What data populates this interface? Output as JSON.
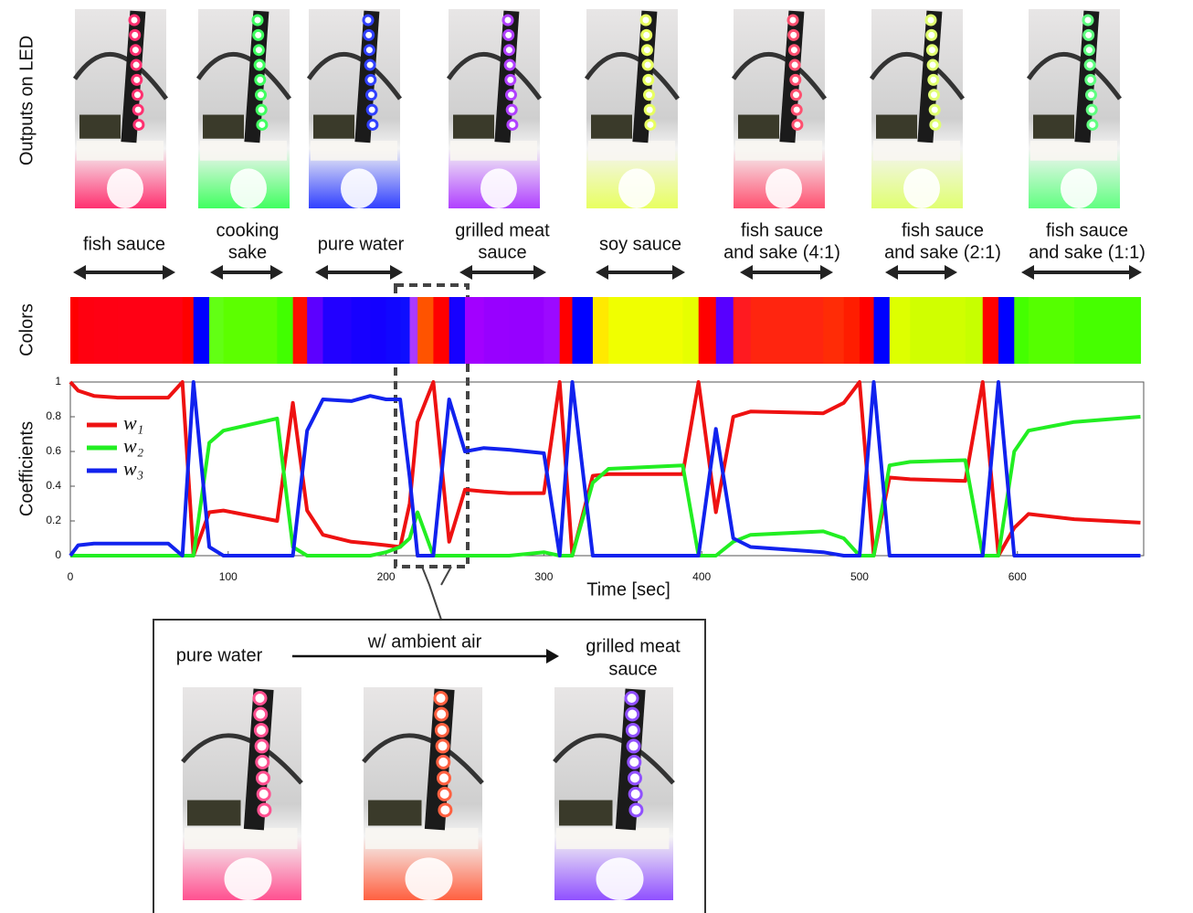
{
  "led_label": "Outputs on LED",
  "colors_label": "Colors",
  "samples": [
    {
      "lines": [
        "fish sauce"
      ],
      "tint": "#ff3070"
    },
    {
      "lines": [
        "cooking",
        "sake"
      ],
      "tint": "#40ff60"
    },
    {
      "lines": [
        "pure water"
      ],
      "tint": "#3040ff"
    },
    {
      "lines": [
        "grilled meat",
        "sauce"
      ],
      "tint": "#b040ff"
    },
    {
      "lines": [
        "soy sauce"
      ],
      "tint": "#e8ff60"
    },
    {
      "lines": [
        "fish sauce",
        "and sake (4:1)"
      ],
      "tint": "#ff5070"
    },
    {
      "lines": [
        "fish sauce",
        "and sake (2:1)"
      ],
      "tint": "#e0ff70"
    },
    {
      "lines": [
        "fish sauce",
        "and sake (1:1)"
      ],
      "tint": "#60ff80"
    }
  ],
  "chart_data": {
    "type": "line",
    "ylabel": "Coefficients",
    "xlabel": "Time [sec]",
    "x": [
      0,
      5,
      15,
      30,
      62,
      71,
      78,
      88,
      97,
      131,
      141,
      150,
      160,
      178,
      190,
      200,
      209,
      215,
      220,
      230,
      240,
      250,
      262,
      278,
      300,
      310,
      318,
      331,
      341,
      388,
      398,
      409,
      420,
      431,
      477,
      490,
      500,
      509,
      519,
      532,
      567,
      578,
      588,
      598,
      607,
      636,
      678
    ],
    "series": [
      {
        "name": "w₁",
        "color": "#ee1111",
        "values": [
          1.0,
          0.95,
          0.92,
          0.91,
          0.91,
          1.0,
          0,
          0.25,
          0.26,
          0.2,
          0.88,
          0.26,
          0.12,
          0.08,
          0.07,
          0.06,
          0.05,
          0.3,
          0.77,
          1.0,
          0.08,
          0.38,
          0.37,
          0.36,
          0.36,
          1.0,
          0,
          0.46,
          0.47,
          0.47,
          1.0,
          0.25,
          0.8,
          0.83,
          0.82,
          0.88,
          1.0,
          0,
          0.45,
          0.44,
          0.43,
          1.0,
          0,
          0.16,
          0.24,
          0.21,
          0.19
        ]
      },
      {
        "name": "w₂",
        "color": "#22ee22",
        "values": [
          0,
          0,
          0,
          0,
          0,
          0,
          0,
          0.65,
          0.72,
          0.79,
          0.05,
          0,
          0,
          0,
          0,
          0.02,
          0.05,
          0.1,
          0.25,
          0,
          0,
          0,
          0,
          0,
          0.02,
          0,
          0,
          0.42,
          0.5,
          0.52,
          0,
          0,
          0.08,
          0.12,
          0.14,
          0.1,
          0,
          0,
          0.52,
          0.54,
          0.55,
          0,
          0,
          0.6,
          0.72,
          0.77,
          0.8
        ]
      },
      {
        "name": "w₃",
        "color": "#1122ee",
        "values": [
          0,
          0.06,
          0.07,
          0.07,
          0.07,
          0,
          1.0,
          0.05,
          0,
          0,
          0,
          0.72,
          0.9,
          0.89,
          0.92,
          0.9,
          0.9,
          0.45,
          0,
          0,
          0.9,
          0.6,
          0.62,
          0.61,
          0.59,
          0,
          1.0,
          0,
          0,
          0,
          0,
          0.73,
          0.1,
          0.05,
          0.02,
          0,
          0,
          1.0,
          0,
          0,
          0,
          0,
          1.0,
          0,
          0,
          0,
          0
        ]
      }
    ],
    "xlim": [
      0,
      680
    ],
    "ylim": [
      0,
      1
    ],
    "xticks": [
      0,
      100,
      200,
      300,
      400,
      500,
      600
    ],
    "yticks": [
      0,
      0.2,
      0.4,
      0.6,
      0.8,
      1
    ]
  },
  "inset": {
    "from": "pure water",
    "via": "w/ ambient air",
    "to": [
      "grilled meat",
      "sauce"
    ],
    "tints": [
      "#ff5090",
      "#ff6040",
      "#9050ff"
    ]
  }
}
